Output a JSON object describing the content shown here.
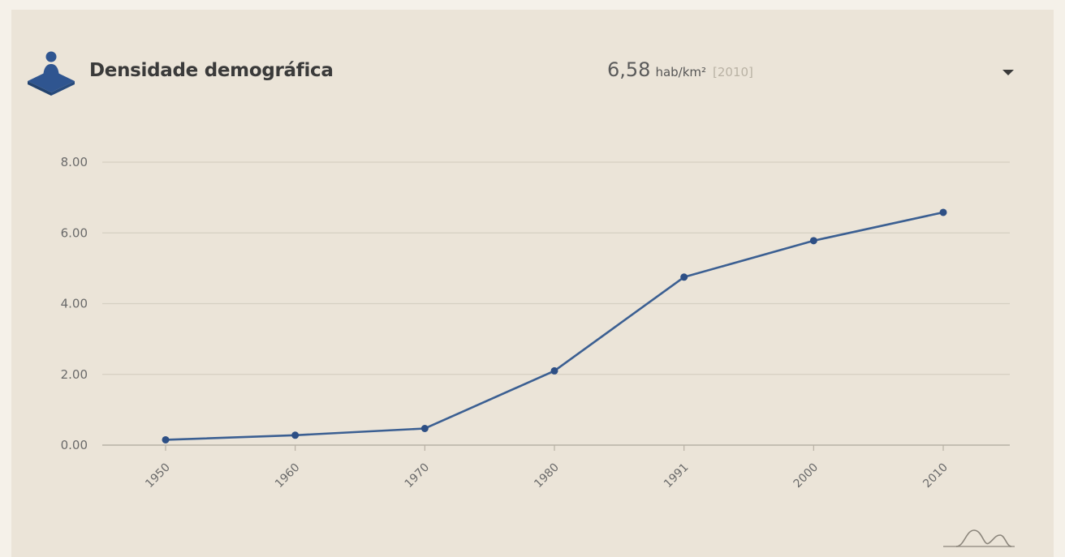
{
  "header": {
    "title": "Densidade demográfica",
    "icon": "population-icon",
    "headline_value": "6,58",
    "headline_unit": "hab/km²",
    "headline_year": "[2010]",
    "dropdown_icon": "caret-down-icon"
  },
  "colors": {
    "background": "#ebe4d8",
    "accent": "#2f5590",
    "line": "#3b5f92",
    "grid": "#d6cfc2"
  },
  "chart_data": {
    "type": "line",
    "categories": [
      "1950",
      "1960",
      "1970",
      "1980",
      "1991",
      "2000",
      "2010"
    ],
    "series": [
      {
        "values": [
          0.15,
          0.28,
          0.47,
          2.1,
          4.75,
          5.78,
          6.58
        ]
      }
    ],
    "y_ticks": [
      "0.00",
      "2.00",
      "4.00",
      "6.00",
      "8.00"
    ],
    "ylim": [
      0,
      8
    ],
    "grid": true,
    "xlabel": "",
    "ylabel": "",
    "chart_type_icon": "area-chart-toggle-icon"
  }
}
